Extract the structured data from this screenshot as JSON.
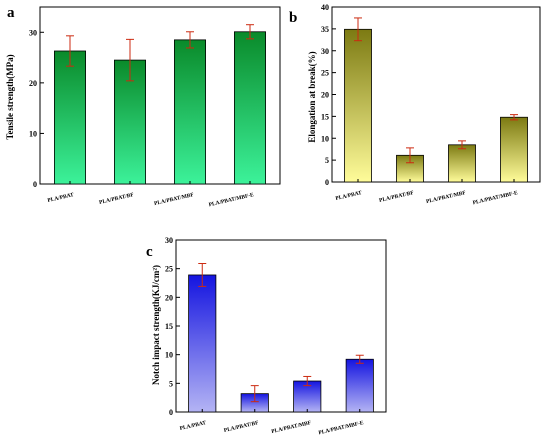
{
  "chart_data": [
    {
      "type": "bar",
      "panel": "a",
      "categories": [
        "PLA/PBAT",
        "PLA/PBAT/BF",
        "PLA/PBAT/MBF",
        "PLA/PBAT/MBF-E"
      ],
      "values": [
        26.3,
        24.5,
        28.5,
        30.1
      ],
      "errors": [
        3.0,
        4.1,
        1.6,
        1.4
      ],
      "ylabel": "Tensile strength(MPa)",
      "ylim": [
        0,
        35
      ],
      "yticks": [
        0,
        10,
        20,
        30
      ],
      "colors": {
        "top": "#0a8a2a",
        "bottom": "#3cf29a",
        "error": "#cc2a10"
      }
    },
    {
      "type": "bar",
      "panel": "b",
      "categories": [
        "PLA/PBAT",
        "PLA/PBAT/BF",
        "PLA/PBAT/MBF",
        "PLA/PBAT/MBF-E"
      ],
      "values": [
        34.9,
        6.1,
        8.5,
        14.8
      ],
      "errors": [
        2.6,
        1.7,
        0.9,
        0.6
      ],
      "ylabel": "Elongation at break(%)",
      "ylim": [
        0,
        40
      ],
      "yticks": [
        0,
        5,
        10,
        15,
        20,
        25,
        30,
        35,
        40
      ],
      "colors": {
        "top": "#7c7a12",
        "bottom": "#fffc9a",
        "error": "#cc2a10"
      }
    },
    {
      "type": "bar",
      "panel": "c",
      "categories": [
        "PLA/PBAT",
        "PLA/PBAT/BF",
        "PLA/PBAT/MBF",
        "PLA/PBAT/MBF-E"
      ],
      "values": [
        23.9,
        3.2,
        5.4,
        9.2
      ],
      "errors": [
        2.0,
        1.4,
        0.8,
        0.7
      ],
      "ylabel": "Notch impact strength(KJ/cm²)",
      "ylim": [
        0,
        30
      ],
      "yticks": [
        0,
        5,
        10,
        15,
        20,
        25,
        30
      ],
      "colors": {
        "top": "#1414e0",
        "bottom": "#b4b4f4",
        "error": "#cc2a10"
      }
    }
  ]
}
